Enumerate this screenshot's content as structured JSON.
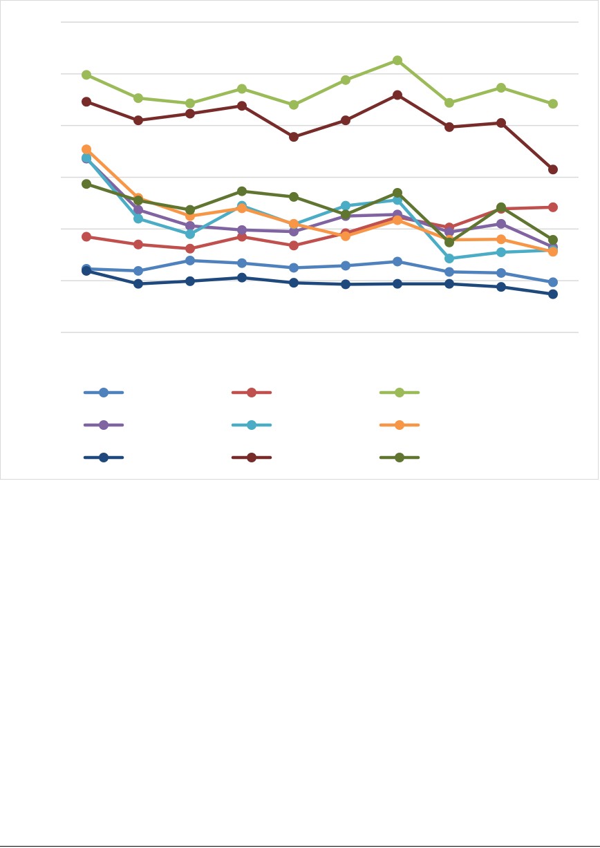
{
  "chart_data": {
    "type": "line",
    "title": "",
    "xlabel": "",
    "ylabel": "",
    "categories": [
      "",
      "",
      "",
      "",
      "",
      "",
      "",
      "",
      "",
      ""
    ],
    "ylim": [
      0,
      6
    ],
    "grid": true,
    "legend_position": "bottom",
    "series": [
      {
        "color": "#4f81bd",
        "values": [
          1.23,
          1.19,
          1.39,
          1.34,
          1.25,
          1.29,
          1.37,
          1.17,
          1.15,
          0.97
        ]
      },
      {
        "color": "#c0504d",
        "values": [
          1.85,
          1.7,
          1.62,
          1.85,
          1.68,
          1.92,
          2.23,
          2.03,
          2.39,
          2.42
        ]
      },
      {
        "color": "#9bbb59",
        "values": [
          4.98,
          4.53,
          4.43,
          4.71,
          4.4,
          4.88,
          5.26,
          4.44,
          4.73,
          4.42
        ]
      },
      {
        "color": "#8064a2",
        "values": [
          3.36,
          2.37,
          2.06,
          1.98,
          1.95,
          2.25,
          2.28,
          1.94,
          2.1,
          1.65
        ]
      },
      {
        "color": "#4bacc6",
        "values": [
          3.38,
          2.2,
          1.9,
          2.45,
          2.09,
          2.45,
          2.56,
          1.43,
          1.55,
          1.59
        ]
      },
      {
        "color": "#f79646",
        "values": [
          3.54,
          2.6,
          2.25,
          2.4,
          2.1,
          1.86,
          2.17,
          1.79,
          1.8,
          1.56
        ]
      },
      {
        "color": "#1f497d",
        "values": [
          1.19,
          0.94,
          0.99,
          1.06,
          0.96,
          0.93,
          0.94,
          0.94,
          0.88,
          0.74
        ]
      },
      {
        "color": "#772c2a",
        "values": [
          4.46,
          4.1,
          4.23,
          4.38,
          3.78,
          4.1,
          4.59,
          3.97,
          4.05,
          3.15
        ]
      },
      {
        "color": "#5f7530",
        "values": [
          2.87,
          2.55,
          2.37,
          2.73,
          2.62,
          2.28,
          2.7,
          1.74,
          2.42,
          1.79
        ]
      }
    ]
  }
}
